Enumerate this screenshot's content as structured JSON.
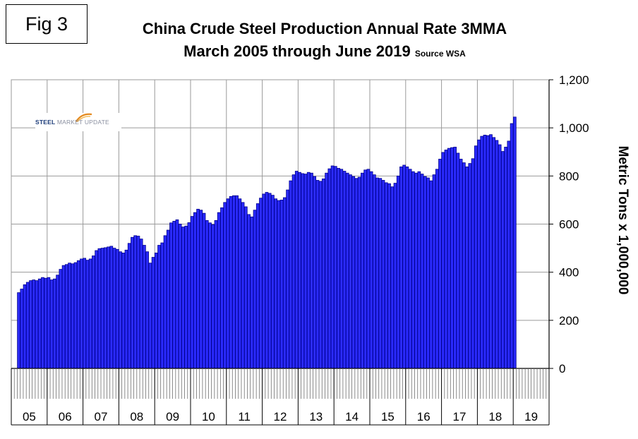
{
  "figure_label": "Fig 3",
  "logo": {
    "part1": "STEEL",
    "part2": "MARKET UPDATE"
  },
  "chart_data": {
    "type": "bar",
    "title": "China Crude Steel Production Annual Rate 3MMA",
    "subtitle": "March 2005 through June 2019",
    "source": "Source WSA",
    "ylabel": "Metric Tons x 1,000,000",
    "ylim": [
      0,
      1200
    ],
    "yticks": [
      0,
      200,
      400,
      600,
      800,
      1000,
      1200
    ],
    "ytick_labels": [
      "0",
      "200",
      "400",
      "600",
      "800",
      "1,000",
      "1,200"
    ],
    "x_start": "2005-03",
    "x_end": "2019-06",
    "year_labels": [
      "05",
      "06",
      "07",
      "08",
      "09",
      "10",
      "11",
      "12",
      "13",
      "14",
      "15",
      "16",
      "17",
      "18",
      "19"
    ],
    "grid": true,
    "bar_color": "#2b2bff",
    "values": [
      315,
      330,
      348,
      358,
      365,
      368,
      365,
      372,
      378,
      375,
      378,
      368,
      372,
      388,
      412,
      428,
      432,
      438,
      435,
      440,
      448,
      455,
      458,
      450,
      455,
      468,
      490,
      498,
      500,
      502,
      505,
      508,
      500,
      495,
      485,
      480,
      492,
      520,
      545,
      552,
      550,
      538,
      512,
      485,
      438,
      462,
      480,
      512,
      522,
      552,
      575,
      605,
      612,
      618,
      600,
      588,
      592,
      606,
      632,
      648,
      662,
      658,
      645,
      615,
      605,
      598,
      615,
      648,
      668,
      690,
      705,
      715,
      718,
      718,
      705,
      690,
      672,
      640,
      630,
      658,
      685,
      708,
      725,
      732,
      728,
      720,
      705,
      698,
      700,
      710,
      742,
      780,
      805,
      820,
      815,
      810,
      808,
      815,
      812,
      798,
      782,
      778,
      788,
      812,
      830,
      842,
      840,
      832,
      828,
      820,
      812,
      805,
      798,
      790,
      795,
      812,
      825,
      828,
      818,
      805,
      792,
      790,
      782,
      772,
      768,
      755,
      770,
      800,
      838,
      845,
      838,
      828,
      818,
      812,
      818,
      808,
      798,
      792,
      780,
      805,
      828,
      870,
      898,
      908,
      915,
      918,
      920,
      895,
      870,
      855,
      838,
      852,
      872,
      925,
      950,
      965,
      970,
      968,
      972,
      960,
      948,
      930,
      902,
      920,
      945,
      1018,
      1045
    ]
  }
}
